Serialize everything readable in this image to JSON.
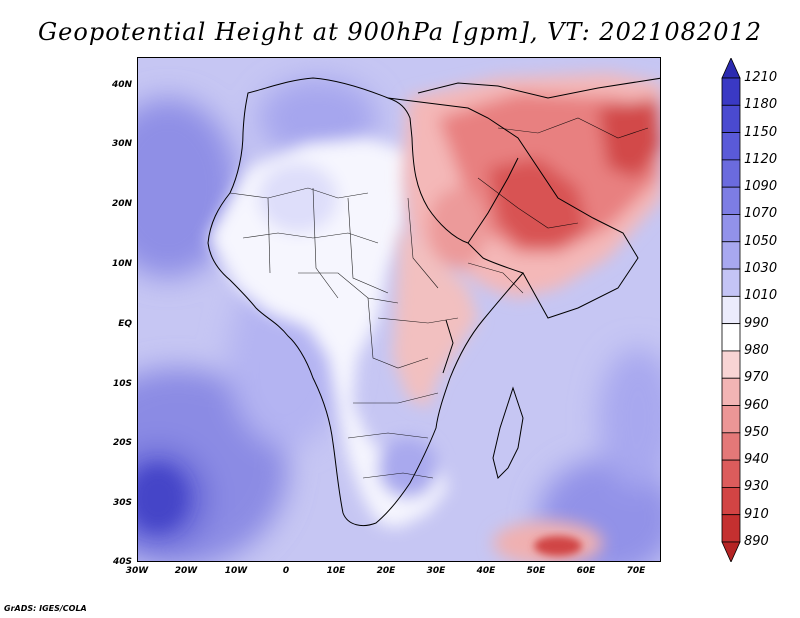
{
  "title": "Geopotential Height at 900hPa [gpm], VT: 2021082012",
  "credit": "GrADS: IGES/COLA",
  "map": {
    "variable": "Geopotential Height",
    "level": "900hPa",
    "units": "gpm",
    "valid_time": "2021082012",
    "lon_range": [
      "30W",
      "75E"
    ],
    "lat_range": [
      "40S",
      "45N"
    ],
    "lat_ticks": [
      "40N",
      "30N",
      "20N",
      "10N",
      "EQ",
      "10S",
      "20S",
      "30S",
      "40S"
    ],
    "lon_ticks": [
      "30W",
      "20W",
      "10W",
      "0",
      "10E",
      "20E",
      "30E",
      "40E",
      "50E",
      "60E",
      "70E"
    ],
    "regions": {
      "arabian_peninsula": "low heights (red)",
      "sahel_and_central_africa": "near 990-1010 (white)",
      "south_atlantic": "high heights (blue)",
      "north_atlantic": "high heights (blue)"
    }
  },
  "legend": {
    "orientation": "vertical",
    "labels": [
      "1210",
      "1180",
      "1150",
      "1120",
      "1090",
      "1070",
      "1050",
      "1030",
      "1010",
      "990",
      "980",
      "970",
      "960",
      "950",
      "940",
      "930",
      "910",
      "890"
    ],
    "colors": [
      "#2b2ab0",
      "#3a39c4",
      "#4a4ad0",
      "#5a5ad8",
      "#6b6bde",
      "#7d7de4",
      "#9292ea",
      "#a8a8f0",
      "#c4c4f6",
      "#ececfc",
      "#ffffff",
      "#f8d4d4",
      "#f2b4b4",
      "#ec9696",
      "#e47878",
      "#dc5c5c",
      "#d24444",
      "#c43030",
      "#b52424"
    ]
  }
}
